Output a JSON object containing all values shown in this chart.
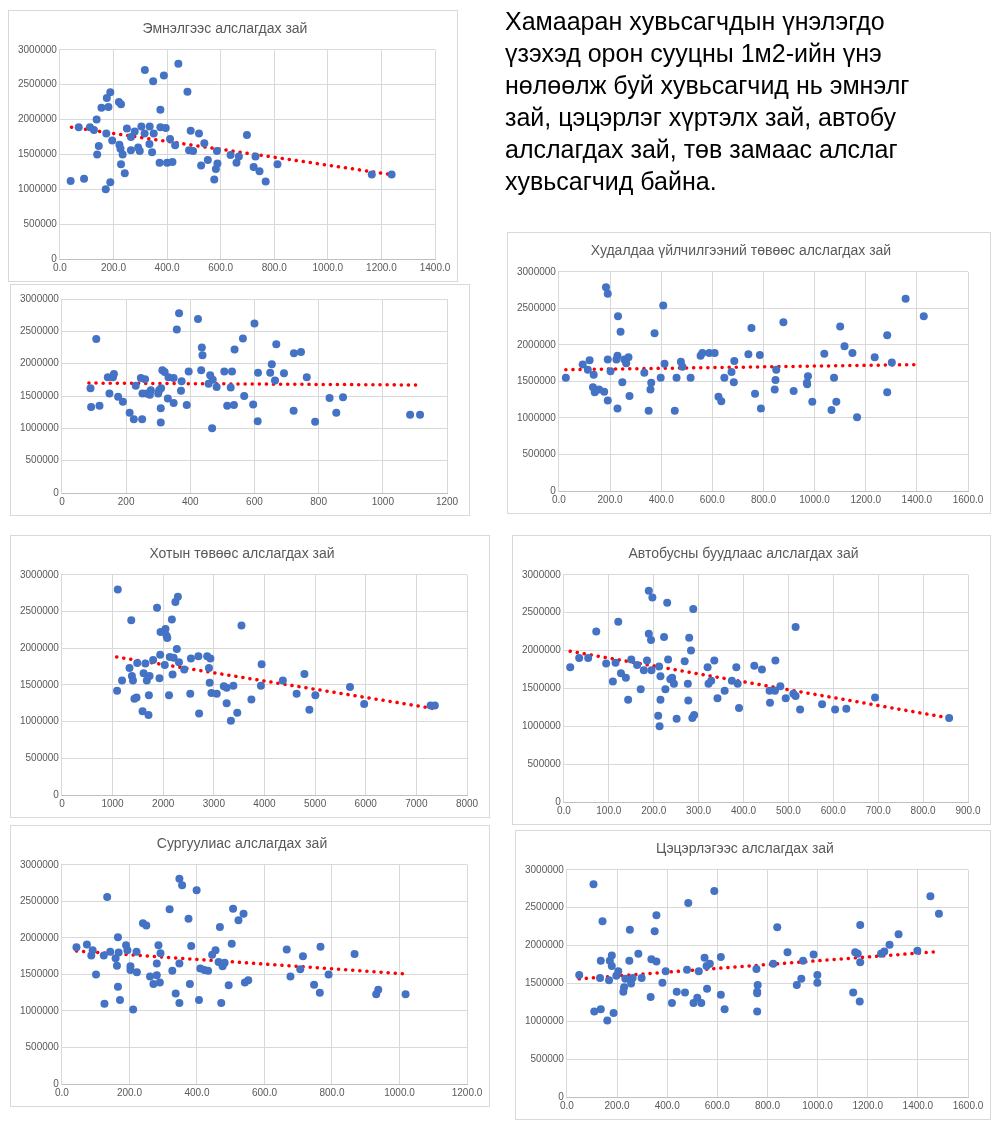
{
  "chart_data": [
    {
      "type": "other",
      "annotations": [
        "Хамааран хувьсагчдын үнэлэгдо",
        "үзэхэд орон сууцны 1м2-ийн үнэ",
        "нөлөөлж буй хувьсагчид нь эмнэлг",
        "зай, цэцэрлэг хүртэлх зай, автобу",
        "алслагдах зай, төв замаас алслаг",
        "хувьсагчид байна."
      ]
    },
    {
      "type": "scatter",
      "title": "Эмнэлгээс алслагдах зай",
      "marker": "circle",
      "grid": true,
      "xlim": [
        0,
        1400
      ],
      "xticks": [
        {
          "value": 0,
          "label": "0.0"
        },
        {
          "value": 200,
          "label": "200.0"
        },
        {
          "value": 400,
          "label": "400.0"
        },
        {
          "value": 600,
          "label": "600.0"
        },
        {
          "value": 800,
          "label": "800.0"
        },
        {
          "value": 1000,
          "label": "1000.0"
        },
        {
          "value": 1200,
          "label": "1200.0"
        },
        {
          "value": 1400,
          "label": "1400.0"
        }
      ],
      "ylim": [
        0,
        3000000
      ],
      "yticks": [
        0,
        500000,
        1000000,
        1500000,
        2000000,
        2500000,
        3000000
      ],
      "series": [
        {
          "type": "scatter",
          "color": "#4472c4",
          "x": [
            40,
            70,
            90,
            112,
            127,
            137,
            139,
            145,
            155,
            171,
            173,
            175,
            181,
            188,
            188,
            195,
            220,
            228,
            222,
            226,
            228,
            234,
            242,
            250,
            265,
            265,
            279,
            292,
            298,
            304,
            316,
            317,
            334,
            335,
            344,
            348,
            350,
            375,
            372,
            375,
            388,
            395,
            400,
            411,
            420,
            430,
            442,
            476,
            482,
            488,
            497,
            519,
            527,
            539,
            552,
            576,
            582,
            588,
            586,
            637,
            659,
            668,
            698,
            730,
            723,
            745,
            768,
            812,
            1164,
            1238
          ],
          "values": [
            1120000,
            1890000,
            1150000,
            1890000,
            1850000,
            2000000,
            1500000,
            1620000,
            2170000,
            1000000,
            1800000,
            2310000,
            2180000,
            2390000,
            1100000,
            1700000,
            2250000,
            2220000,
            1640000,
            1580000,
            1360000,
            1500000,
            1230000,
            1870000,
            1750000,
            1560000,
            1830000,
            1600000,
            1550000,
            1900000,
            1800000,
            2710000,
            1650000,
            1900000,
            1530000,
            2550000,
            1800000,
            2140000,
            1380000,
            1890000,
            2630000,
            1880000,
            1380000,
            1720000,
            1390000,
            1630000,
            2800000,
            2400000,
            1560000,
            1840000,
            1550000,
            1800000,
            1340000,
            1660000,
            1420000,
            1140000,
            1290000,
            1370000,
            1550000,
            1490000,
            1380000,
            1470000,
            1780000,
            1470000,
            1320000,
            1260000,
            1110000,
            1360000,
            1210000,
            1210000
          ]
        },
        {
          "type": "line",
          "color": "#ff0000",
          "line_style": "dotted",
          "marker": "none",
          "x": [
            43,
            1238
          ],
          "values": [
            1890000,
            1210000
          ]
        }
      ]
    },
    {
      "type": "scatter",
      "marker": "circle",
      "grid": true,
      "xlim": [
        0,
        1200
      ],
      "xticks": [
        0,
        200,
        400,
        600,
        800,
        1000,
        1200
      ],
      "ylim": [
        0,
        3000000
      ],
      "yticks": [
        0,
        500000,
        1000000,
        1500000,
        2000000,
        2500000,
        3000000
      ],
      "series": [
        {
          "type": "scatter",
          "color": "#4472c4",
          "x": [
            89,
            91,
            107,
            117,
            143,
            148,
            159,
            162,
            175,
            190,
            211,
            224,
            230,
            246,
            251,
            250,
            259,
            264,
            277,
            274,
            300,
            303,
            309,
            308,
            308,
            313,
            320,
            330,
            332,
            348,
            348,
            358,
            365,
            371,
            373,
            389,
            395,
            424,
            434,
            436,
            438,
            462,
            468,
            470,
            457,
            482,
            506,
            515,
            530,
            526,
            536,
            538,
            564,
            568,
            596,
            600,
            610,
            611,
            649,
            654,
            664,
            668,
            692,
            722,
            723,
            745,
            763,
            789,
            834,
            855,
            876,
            1085,
            1116
          ],
          "values": [
            1620000,
            1330000,
            2380000,
            1350000,
            1790000,
            1540000,
            1790000,
            1840000,
            1490000,
            1410000,
            1240000,
            1140000,
            1660000,
            1780000,
            1540000,
            1140000,
            1760000,
            1540000,
            1590000,
            1520000,
            1540000,
            1590000,
            1620000,
            1310000,
            1090000,
            1900000,
            1870000,
            1460000,
            1790000,
            1780000,
            1390000,
            2530000,
            2780000,
            1580000,
            1730000,
            1360000,
            1880000,
            2690000,
            1900000,
            2250000,
            2130000,
            1820000,
            1000000,
            1750000,
            1690000,
            1640000,
            1880000,
            1350000,
            1880000,
            1630000,
            1360000,
            2220000,
            2390000,
            1500000,
            1370000,
            2620000,
            1110000,
            1860000,
            1860000,
            1990000,
            1740000,
            2300000,
            1850000,
            1270000,
            2160000,
            2180000,
            1790000,
            1100000,
            1470000,
            1240000,
            1480000,
            1210000,
            1210000
          ]
        },
        {
          "type": "line",
          "color": "#ff0000",
          "line_style": "dotted",
          "marker": "none",
          "x": [
            84,
            1108
          ],
          "values": [
            1700000,
            1670000
          ]
        }
      ]
    },
    {
      "type": "scatter",
      "title": "Худалдаа үйлчилгээний төвөөс алслагдах зай",
      "marker": "circle",
      "grid": true,
      "xlim": [
        0,
        1600
      ],
      "xticks": [
        {
          "value": 0,
          "label": "0.0"
        },
        {
          "value": 200,
          "label": "200.0"
        },
        {
          "value": 400,
          "label": "400.0"
        },
        {
          "value": 600,
          "label": "600.0"
        },
        {
          "value": 800,
          "label": "800.0"
        },
        {
          "value": 1000,
          "label": "1000.0"
        },
        {
          "value": 1200,
          "label": "1200.0"
        },
        {
          "value": 1400,
          "label": "1400.0"
        },
        {
          "value": 1600,
          "label": "1600.0"
        }
      ],
      "ylim": [
        0,
        3000000
      ],
      "yticks": [
        0,
        500000,
        1000000,
        1500000,
        2000000,
        2500000,
        3000000
      ],
      "series": [
        {
          "type": "scatter",
          "color": "#4472c4",
          "x": [
            27,
            93,
            120,
            113,
            136,
            133,
            140,
            157,
            177,
            184,
            191,
            191,
            191,
            202,
            229,
            231,
            229,
            225,
            241,
            248,
            256,
            263,
            272,
            276,
            334,
            351,
            358,
            361,
            374,
            398,
            408,
            413,
            453,
            460,
            477,
            483,
            515,
            554,
            561,
            588,
            609,
            624,
            635,
            647,
            675,
            684,
            686,
            741,
            753,
            767,
            786,
            790,
            850,
            847,
            844,
            878,
            918,
            970,
            974,
            971,
            991,
            1038,
            1066,
            1076,
            1085,
            1100,
            1117,
            1148,
            1166,
            1235,
            1284,
            1284,
            1302,
            1356,
            1427
          ],
          "values": [
            1550000,
            1730000,
            1790000,
            1660000,
            1590000,
            1420000,
            1350000,
            1390000,
            1360000,
            2790000,
            2700000,
            1800000,
            1240000,
            1640000,
            1130000,
            2390000,
            1850000,
            1800000,
            2180000,
            1490000,
            1800000,
            1750000,
            1830000,
            1300000,
            1620000,
            1100000,
            1390000,
            1480000,
            2160000,
            1550000,
            2540000,
            1740000,
            1100000,
            1550000,
            1770000,
            1700000,
            1550000,
            1850000,
            1890000,
            1890000,
            1890000,
            1290000,
            1230000,
            1550000,
            1630000,
            1490000,
            1780000,
            1870000,
            2230000,
            1330000,
            1860000,
            1130000,
            1660000,
            1520000,
            1390000,
            2310000,
            1370000,
            1480000,
            1570000,
            1460000,
            1220000,
            1880000,
            1110000,
            1550000,
            1220000,
            2250000,
            1980000,
            1890000,
            1010000,
            1830000,
            2130000,
            1350000,
            1760000,
            2630000,
            2390000
          ]
        },
        {
          "type": "line",
          "color": "#ff0000",
          "line_style": "dotted",
          "marker": "none",
          "x": [
            27,
            1402
          ],
          "values": [
            1660000,
            1730000
          ]
        }
      ]
    },
    {
      "type": "scatter",
      "title": "Хотын төвөөс алслагдах зай",
      "marker": "circle",
      "grid": true,
      "xlim": [
        0,
        8000
      ],
      "xticks": [
        0,
        1000,
        2000,
        3000,
        4000,
        5000,
        6000,
        7000,
        8000
      ],
      "ylim": [
        0,
        3000000
      ],
      "yticks": [
        0,
        500000,
        1000000,
        1500000,
        2000000,
        2500000,
        3000000
      ],
      "series": [
        {
          "type": "scatter",
          "color": "#4472c4",
          "x": [
            1103,
            1089,
            1187,
            1334,
            1369,
            1382,
            1403,
            1431,
            1473,
            1487,
            1592,
            1613,
            1648,
            1676,
            1710,
            1717,
            1731,
            1801,
            1878,
            1927,
            1948,
            1941,
            2031,
            2045,
            2066,
            2080,
            2115,
            2129,
            2171,
            2185,
            2206,
            2241,
            2290,
            2269,
            2311,
            2415,
            2534,
            2548,
            2695,
            2709,
            2869,
            2904,
            2918,
            2932,
            2953,
            3058,
            3197,
            3253,
            3253,
            3337,
            3386,
            3463,
            3546,
            3742,
            3930,
            3944,
            4363,
            4635,
            4789,
            4887,
            5005,
            5689,
            5969,
            7281,
            7365
          ],
          "values": [
            2800000,
            1420000,
            1560000,
            1730000,
            2380000,
            1620000,
            1560000,
            1310000,
            1330000,
            1800000,
            1140000,
            1660000,
            1790000,
            1560000,
            1090000,
            1360000,
            1620000,
            1840000,
            2550000,
            1590000,
            2220000,
            1910000,
            1770000,
            2260000,
            2170000,
            2140000,
            1360000,
            1880000,
            2390000,
            1640000,
            1870000,
            2630000,
            2700000,
            1990000,
            1810000,
            1710000,
            1380000,
            1860000,
            1890000,
            1110000,
            1890000,
            1730000,
            1530000,
            1860000,
            1390000,
            1380000,
            1480000,
            1250000,
            1460000,
            1010000,
            1490000,
            1120000,
            2310000,
            1300000,
            1490000,
            1780000,
            1560000,
            1380000,
            1650000,
            1160000,
            1360000,
            1470000,
            1240000,
            1220000,
            1220000
          ]
        },
        {
          "type": "line",
          "color": "#ff0000",
          "line_style": "dotted",
          "marker": "none",
          "x": [
            1082,
            7323
          ],
          "values": [
            1880000,
            1180000
          ]
        }
      ]
    },
    {
      "type": "scatter",
      "title": "Автобусны буудлаас алслагдах зай",
      "marker": "circle",
      "grid": true,
      "xlim": [
        0,
        900
      ],
      "xticks": [
        {
          "value": 0,
          "label": "0.0"
        },
        {
          "value": 100,
          "label": "100.0"
        },
        {
          "value": 200,
          "label": "200.0"
        },
        {
          "value": 300,
          "label": "300.0"
        },
        {
          "value": 400,
          "label": "400.0"
        },
        {
          "value": 500,
          "label": "500.0"
        },
        {
          "value": 600,
          "label": "600.0"
        },
        {
          "value": 700,
          "label": "700.0"
        },
        {
          "value": 800,
          "label": "800.0"
        },
        {
          "value": 900,
          "label": "900.0"
        }
      ],
      "ylim": [
        0,
        3000000
      ],
      "yticks": [
        0,
        500000,
        1000000,
        1500000,
        2000000,
        2500000,
        3000000
      ],
      "series": [
        {
          "type": "scatter",
          "color": "#4472c4",
          "x": [
            14,
            34,
            54,
            72,
            94,
            109,
            115,
            121,
            127,
            138,
            143,
            150,
            163,
            171,
            178,
            185,
            189,
            189,
            194,
            195,
            197,
            210,
            213,
            215,
            215,
            212,
            223,
            226,
            230,
            232,
            237,
            241,
            245,
            251,
            269,
            276,
            277,
            279,
            283,
            288,
            286,
            290,
            320,
            322,
            328,
            335,
            342,
            358,
            374,
            384,
            387,
            390,
            424,
            441,
            458,
            459,
            471,
            470,
            482,
            494,
            511,
            516,
            516,
            526,
            575,
            604,
            629,
            693,
            858
          ],
          "values": [
            1780000,
            1900000,
            1900000,
            2250000,
            1830000,
            1590000,
            1840000,
            2380000,
            1700000,
            1640000,
            1350000,
            1880000,
            1810000,
            1490000,
            1740000,
            1870000,
            2790000,
            2220000,
            2140000,
            1740000,
            2700000,
            1140000,
            1000000,
            1350000,
            1660000,
            1790000,
            2180000,
            1490000,
            2630000,
            1880000,
            1620000,
            1640000,
            1560000,
            1100000,
            1860000,
            1560000,
            1340000,
            2170000,
            2000000,
            2550000,
            1110000,
            1150000,
            1780000,
            1560000,
            1600000,
            1870000,
            1370000,
            1470000,
            1600000,
            1780000,
            1560000,
            1240000,
            1800000,
            1750000,
            1470000,
            1310000,
            1870000,
            1470000,
            1530000,
            1370000,
            1430000,
            2310000,
            1400000,
            1220000,
            1290000,
            1220000,
            1230000,
            1380000,
            1110000
          ]
        },
        {
          "type": "line",
          "color": "#ff0000",
          "line_style": "dotted",
          "marker": "none",
          "x": [
            14,
            857
          ],
          "values": [
            1990000,
            1110000
          ]
        }
      ]
    },
    {
      "type": "scatter",
      "title": "Сургуулиас алслагдах зай",
      "marker": "circle",
      "grid": true,
      "xlim": [
        0,
        1200
      ],
      "xticks": [
        {
          "value": 0,
          "label": "0.0"
        },
        {
          "value": 200,
          "label": "200.0"
        },
        {
          "value": 400,
          "label": "400.0"
        },
        {
          "value": 600,
          "label": "600.0"
        },
        {
          "value": 800,
          "label": "800.0"
        },
        {
          "value": 1000,
          "label": "1000.0"
        },
        {
          "value": 1200,
          "label": "1200.0"
        }
      ],
      "ylim": [
        0,
        3000000
      ],
      "yticks": [
        0,
        500000,
        1000000,
        1500000,
        2000000,
        2500000,
        3000000
      ],
      "series": [
        {
          "type": "scatter",
          "color": "#4472c4",
          "x": [
            43,
            74,
            87,
            91,
            101,
            124,
            134,
            143,
            159,
            163,
            166,
            168,
            166,
            172,
            126,
            190,
            194,
            203,
            203,
            211,
            221,
            222,
            240,
            250,
            261,
            271,
            281,
            281,
            286,
            292,
            290,
            319,
            327,
            337,
            348,
            356,
            348,
            348,
            375,
            379,
            383,
            399,
            406,
            410,
            422,
            433,
            445,
            455,
            464,
            468,
            476,
            482,
            472,
            494,
            503,
            507,
            523,
            538,
            542,
            552,
            666,
            677,
            714,
            706,
            747,
            766,
            764,
            790,
            867,
            931,
            937,
            1018
          ],
          "values": [
            1870000,
            1910000,
            1760000,
            1830000,
            1500000,
            1760000,
            2560000,
            1810000,
            1720000,
            1620000,
            2010000,
            1800000,
            1330000,
            1150000,
            1100000,
            1900000,
            1830000,
            1610000,
            1560000,
            1020000,
            1810000,
            1530000,
            2200000,
            2170000,
            1470000,
            1370000,
            1650000,
            1490000,
            1900000,
            1790000,
            1390000,
            2390000,
            1550000,
            1240000,
            2810000,
            2720000,
            1650000,
            1110000,
            2260000,
            1370000,
            1890000,
            2650000,
            1150000,
            1580000,
            1560000,
            1550000,
            1770000,
            1830000,
            1670000,
            2150000,
            1610000,
            1660000,
            1110000,
            1350000,
            1920000,
            2400000,
            2240000,
            2330000,
            1390000,
            1420000,
            1840000,
            1470000,
            1750000,
            1570000,
            1360000,
            1880000,
            1250000,
            1500000,
            1780000,
            1230000,
            1290000,
            1230000
          ]
        },
        {
          "type": "line",
          "color": "#ff0000",
          "line_style": "dotted",
          "marker": "none",
          "x": [
            43,
            1010
          ],
          "values": [
            1820000,
            1510000
          ]
        }
      ]
    },
    {
      "type": "scatter",
      "title": "Цэцэрлэгээс алслагдах зай",
      "marker": "circle",
      "grid": true,
      "xlim": [
        0,
        1600
      ],
      "xticks": [
        {
          "value": 0,
          "label": "0.0"
        },
        {
          "value": 200,
          "label": "200.0"
        },
        {
          "value": 400,
          "label": "400.0"
        },
        {
          "value": 600,
          "label": "600.0"
        },
        {
          "value": 800,
          "label": "800.0"
        },
        {
          "value": 1000,
          "label": "1000.0"
        },
        {
          "value": 1200,
          "label": "1200.0"
        },
        {
          "value": 1400,
          "label": "1400.0"
        },
        {
          "value": 1600,
          "label": "1600.0"
        }
      ],
      "ylim": [
        0,
        3000000
      ],
      "yticks": [
        0,
        500000,
        1000000,
        1500000,
        2000000,
        2500000,
        3000000
      ],
      "series": [
        {
          "type": "scatter",
          "color": "#4472c4",
          "x": [
            49,
            106,
            109,
            132,
            135,
            135,
            142,
            161,
            168,
            171,
            179,
            179,
            186,
            197,
            205,
            225,
            228,
            233,
            251,
            249,
            256,
            262,
            285,
            298,
            334,
            337,
            350,
            357,
            357,
            381,
            394,
            419,
            438,
            471,
            479,
            484,
            505,
            520,
            536,
            526,
            549,
            557,
            559,
            570,
            588,
            614,
            614,
            629,
            756,
            759,
            761,
            759,
            759,
            823,
            839,
            880,
            917,
            935,
            942,
            984,
            999,
            999,
            1142,
            1150,
            1160,
            1168,
            1170,
            1170,
            1253,
            1266,
            1287,
            1323,
            1398,
            1450,
            1484
          ],
          "values": [
            1610000,
            2810000,
            1130000,
            1570000,
            1800000,
            1160000,
            2320000,
            1010000,
            1540000,
            1800000,
            1870000,
            1730000,
            1110000,
            1600000,
            1660000,
            1390000,
            1450000,
            1560000,
            2210000,
            1800000,
            1500000,
            1570000,
            1890000,
            1570000,
            1320000,
            1820000,
            2190000,
            2400000,
            1790000,
            1510000,
            1660000,
            1240000,
            1390000,
            1380000,
            1680000,
            2560000,
            1240000,
            1310000,
            1240000,
            1660000,
            1840000,
            1730000,
            1430000,
            1760000,
            2720000,
            1850000,
            1350000,
            1160000,
            1690000,
            1390000,
            1480000,
            1370000,
            1130000,
            1760000,
            2240000,
            1910000,
            1480000,
            1560000,
            1800000,
            1880000,
            1610000,
            1510000,
            1380000,
            1910000,
            1890000,
            1260000,
            1780000,
            2270000,
            1890000,
            1920000,
            2010000,
            2150000,
            1930000,
            2650000,
            2420000
          ]
        },
        {
          "type": "line",
          "color": "#ff0000",
          "line_style": "dotted",
          "marker": "none",
          "x": [
            49,
            1480
          ],
          "values": [
            1560000,
            1920000
          ]
        }
      ]
    }
  ]
}
